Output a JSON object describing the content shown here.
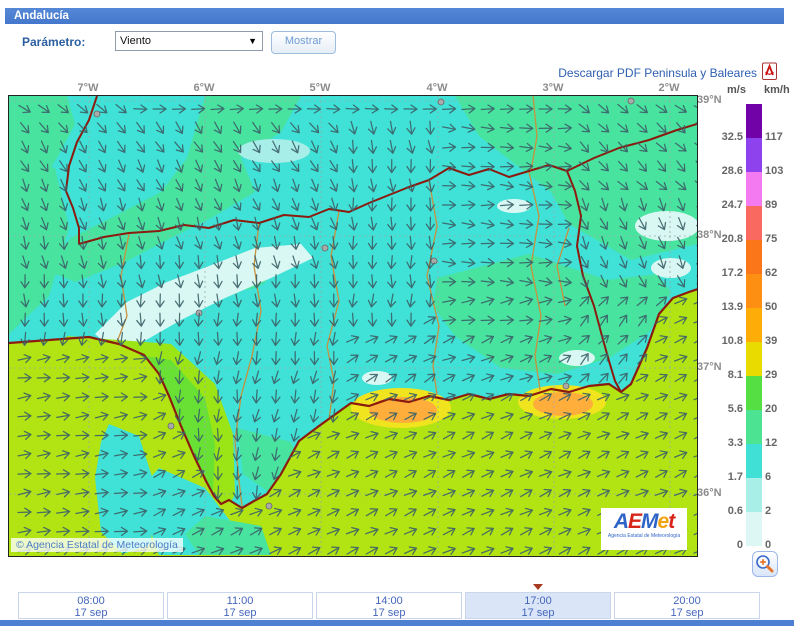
{
  "header": {
    "title": "Andalucía"
  },
  "controls": {
    "param_label": "Parámetro:",
    "param_value": "Viento",
    "show_button": "Mostrar"
  },
  "download": {
    "label": "Descargar PDF Peninsula y Baleares"
  },
  "map": {
    "lon_ticks": [
      "7°W",
      "6°W",
      "5°W",
      "4°W",
      "3°W",
      "2°W"
    ],
    "lat_ticks": [
      "39°N",
      "38°N",
      "37°N",
      "36°N"
    ],
    "copyright": "© Agencia Estatal de Meteorología",
    "logo_letters": [
      {
        "ch": "A",
        "color": "#2e64c8"
      },
      {
        "ch": "E",
        "color": "#d8251c"
      },
      {
        "ch": "M",
        "color": "#2e64c8"
      },
      {
        "ch": "e",
        "color": "#f2a30f"
      },
      {
        "ch": "t",
        "color": "#d8251c"
      }
    ],
    "logo_subtext": "Agencia Estatal de Meteorología",
    "colors": {
      "calm_cyan": "#40e1d6",
      "breeze_green": "#49e3a0",
      "sea_chartreuse": "#b2e312",
      "fringe_chartreuse": "#9be416",
      "land_green": "#68e134",
      "pale_cyan": "#d9f8f3",
      "yellow": "#f0e41e",
      "orange": "#ffae3c",
      "region_border": "#8b1a0f",
      "province_border": "#c8913e",
      "grid_gray": "#9aabab",
      "arrow": "#3b6168"
    }
  },
  "legend": {
    "unit_left": "m/s",
    "unit_right": "km/h",
    "blocks": [
      {
        "color": "#7102a8",
        "ms": "32.5",
        "kmh": "117"
      },
      {
        "color": "#8d42ee",
        "ms": "28.6",
        "kmh": "103"
      },
      {
        "color": "#f47af2",
        "ms": "24.7",
        "kmh": "89"
      },
      {
        "color": "#f9695f",
        "ms": "20.8",
        "kmh": "75"
      },
      {
        "color": "#fb7519",
        "ms": "17.2",
        "kmh": "62"
      },
      {
        "color": "#fd9013",
        "ms": "13.9",
        "kmh": "50"
      },
      {
        "color": "#feac07",
        "ms": "10.8",
        "kmh": "39"
      },
      {
        "color": "#e9db00",
        "ms": "8.1",
        "kmh": "29"
      },
      {
        "color": "#55df42",
        "ms": "5.6",
        "kmh": "20"
      },
      {
        "color": "#4ce393",
        "ms": "3.3",
        "kmh": "12"
      },
      {
        "color": "#40e0d6",
        "ms": "1.7",
        "kmh": "6"
      },
      {
        "color": "#a8efe7",
        "ms": "0.6",
        "kmh": "2"
      },
      {
        "color": "#ddf8f4",
        "ms": "0",
        "kmh": "0"
      }
    ]
  },
  "timeline": {
    "selected_index": 3,
    "items": [
      {
        "time": "08:00",
        "date": "17 sep"
      },
      {
        "time": "11:00",
        "date": "17 sep"
      },
      {
        "time": "14:00",
        "date": "17 sep"
      },
      {
        "time": "17:00",
        "date": "17 sep"
      },
      {
        "time": "20:00",
        "date": "17 sep"
      }
    ]
  }
}
